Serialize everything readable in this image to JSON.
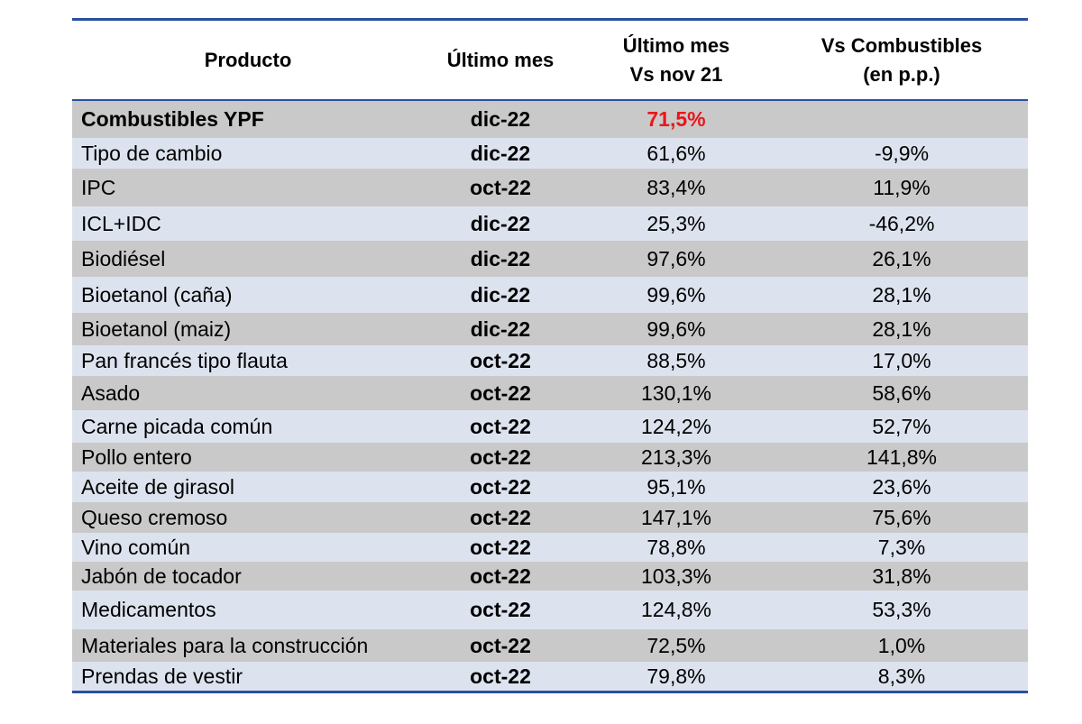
{
  "table": {
    "headers": [
      "Producto",
      "Último mes",
      "Último mes\nVs nov  21",
      "Vs Combustibles\n(en p.p.)"
    ],
    "highlight_color": "#e8161c",
    "rows": [
      {
        "producto": "Combustibles YPF",
        "mes": "dic-22",
        "vs_nov21": "71,5%",
        "vs_comb": ""
      },
      {
        "producto": "Tipo de cambio",
        "mes": "dic-22",
        "vs_nov21": "61,6%",
        "vs_comb": "-9,9%"
      },
      {
        "producto": "IPC",
        "mes": "oct-22",
        "vs_nov21": "83,4%",
        "vs_comb": "11,9%"
      },
      {
        "producto": "ICL+IDC",
        "mes": "dic-22",
        "vs_nov21": "25,3%",
        "vs_comb": "-46,2%"
      },
      {
        "producto": "Biodiésel",
        "mes": "dic-22",
        "vs_nov21": "97,6%",
        "vs_comb": "26,1%"
      },
      {
        "producto": "Bioetanol (caña)",
        "mes": "dic-22",
        "vs_nov21": "99,6%",
        "vs_comb": "28,1%"
      },
      {
        "producto": "Bioetanol (maiz)",
        "mes": "dic-22",
        "vs_nov21": "99,6%",
        "vs_comb": "28,1%"
      },
      {
        "producto": "Pan francés tipo flauta",
        "mes": "oct-22",
        "vs_nov21": "88,5%",
        "vs_comb": "17,0%"
      },
      {
        "producto": "Asado",
        "mes": "oct-22",
        "vs_nov21": "130,1%",
        "vs_comb": "58,6%"
      },
      {
        "producto": "Carne picada común",
        "mes": "oct-22",
        "vs_nov21": "124,2%",
        "vs_comb": "52,7%"
      },
      {
        "producto": "Pollo entero",
        "mes": "oct-22",
        "vs_nov21": "213,3%",
        "vs_comb": "141,8%"
      },
      {
        "producto": "Aceite de girasol",
        "mes": "oct-22",
        "vs_nov21": "95,1%",
        "vs_comb": "23,6%"
      },
      {
        "producto": "Queso cremoso",
        "mes": "oct-22",
        "vs_nov21": "147,1%",
        "vs_comb": "75,6%"
      },
      {
        "producto": "Vino común",
        "mes": "oct-22",
        "vs_nov21": "78,8%",
        "vs_comb": "7,3%"
      },
      {
        "producto": "Jabón de tocador",
        "mes": "oct-22",
        "vs_nov21": "103,3%",
        "vs_comb": "31,8%"
      },
      {
        "producto": "Medicamentos",
        "mes": "oct-22",
        "vs_nov21": "124,8%",
        "vs_comb": "53,3%"
      },
      {
        "producto": "Materiales para la construcción",
        "mes": "oct-22",
        "vs_nov21": "72,5%",
        "vs_comb": "1,0%"
      },
      {
        "producto": "Prendas de vestir",
        "mes": "oct-22",
        "vs_nov21": "79,8%",
        "vs_comb": "8,3%"
      }
    ]
  }
}
